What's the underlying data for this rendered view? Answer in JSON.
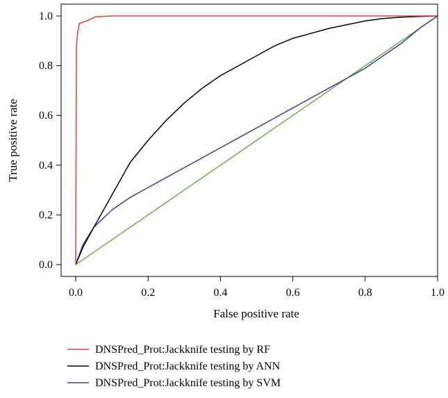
{
  "chart_data": {
    "type": "line",
    "xlabel": "False positive rate",
    "ylabel": "True positive rate",
    "xlim": [
      0.0,
      1.0
    ],
    "ylim": [
      0.0,
      1.0
    ],
    "x_ticks": [
      "0.0",
      "0.2",
      "0.4",
      "0.6",
      "0.8",
      "1.0"
    ],
    "y_ticks": [
      "0.0",
      "0.2",
      "0.4",
      "0.6",
      "0.8",
      "1.0"
    ],
    "grid": false,
    "legend_position": "bottom",
    "series": [
      {
        "name": "DNSPred_Prot:Jackknife testing by RF",
        "color": "#e8412c",
        "x": [
          0.0,
          0.002,
          0.005,
          0.01,
          0.03,
          0.055,
          0.1,
          0.5,
          1.0
        ],
        "y": [
          0.0,
          0.88,
          0.93,
          0.97,
          0.98,
          0.997,
          1.0,
          1.0,
          1.0
        ]
      },
      {
        "name": "DNSPred_Prot:Jackknife testing by ANN",
        "color": "#000000",
        "x": [
          0.0,
          0.02,
          0.05,
          0.1,
          0.15,
          0.2,
          0.25,
          0.3,
          0.35,
          0.4,
          0.45,
          0.5,
          0.55,
          0.6,
          0.65,
          0.7,
          0.75,
          0.8,
          0.85,
          0.9,
          0.95,
          1.0
        ],
        "y": [
          0.0,
          0.07,
          0.15,
          0.28,
          0.41,
          0.5,
          0.58,
          0.65,
          0.71,
          0.76,
          0.8,
          0.84,
          0.88,
          0.91,
          0.93,
          0.95,
          0.965,
          0.98,
          0.99,
          0.995,
          0.998,
          1.0
        ]
      },
      {
        "name": "DNSPred_Prot:Jackknife testing by SVM",
        "color": "#3a3a9c",
        "x": [
          0.0,
          0.02,
          0.05,
          0.1,
          0.15,
          0.2,
          0.25,
          0.3,
          0.35,
          0.4,
          0.45,
          0.5,
          0.55,
          0.6,
          0.65,
          0.7,
          0.75,
          0.8,
          0.85,
          0.9,
          0.95,
          1.0
        ],
        "y": [
          0.0,
          0.08,
          0.15,
          0.22,
          0.27,
          0.31,
          0.35,
          0.39,
          0.43,
          0.47,
          0.51,
          0.55,
          0.59,
          0.63,
          0.67,
          0.71,
          0.75,
          0.79,
          0.84,
          0.89,
          0.95,
          1.0
        ]
      },
      {
        "color": "#6ab04c",
        "x": [
          0.0,
          1.0
        ],
        "y": [
          0.0,
          1.0
        ]
      }
    ]
  }
}
